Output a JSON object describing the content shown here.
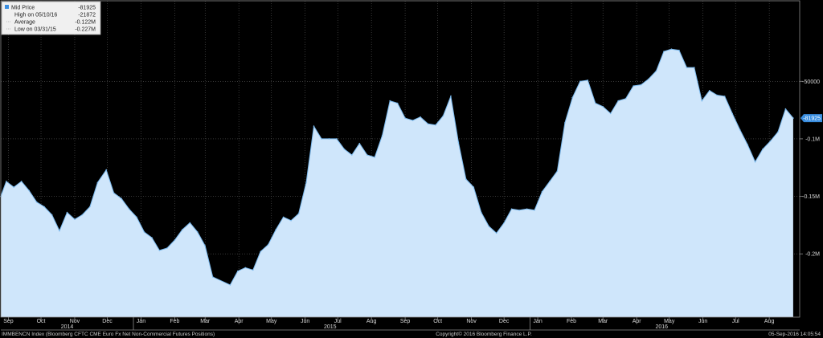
{
  "colors": {
    "background": "#000000",
    "plot_border": "#8a8a8a",
    "grid": "#5a5a5a",
    "area_fill": "#cfe6fb",
    "line": "#7ab8ec",
    "last_price_tag": "#3a8ee0"
  },
  "legend": {
    "rows": [
      {
        "label": "Mid Price",
        "value": "-81925",
        "swatch": "square"
      },
      {
        "label": "High on 05/10/16",
        "value": "-21872",
        "swatch": "none"
      },
      {
        "label": "Average",
        "value": "-0.122M",
        "swatch": "dash"
      },
      {
        "label": "Low on 03/31/15",
        "value": "-0.227M",
        "swatch": "dash"
      }
    ]
  },
  "last_price_label": "-81925",
  "footer": {
    "left": "IMMBENCN Index (Bloomberg CFTC CME Euro Fx Net Non-Commercial Futures Positions)",
    "center": "Copyright© 2016 Bloomberg Finance L.P.",
    "right": "05-Sep-2016 14:05:54"
  },
  "chart_data": {
    "type": "area",
    "title": "",
    "xlabel": "",
    "ylabel": "",
    "x_range": [
      "2014-09-01",
      "2016-09-05"
    ],
    "ylim": [
      -0.255,
      0.02
    ],
    "y_ticks": [
      {
        "value": -0.05,
        "label": "-50000"
      },
      {
        "value": -0.1,
        "label": "-0.1M"
      },
      {
        "value": -0.15,
        "label": "-0.15M"
      },
      {
        "value": -0.2,
        "label": "-0.2M"
      }
    ],
    "x_ticks": [
      {
        "date": "2014-09-08",
        "label": "Sep"
      },
      {
        "date": "2014-10-08",
        "label": "Oct"
      },
      {
        "date": "2014-11-08",
        "label": "Nov"
      },
      {
        "date": "2014-12-08",
        "label": "Dec"
      },
      {
        "date": "2015-01-08",
        "label": "Jan"
      },
      {
        "date": "2015-02-08",
        "label": "Feb"
      },
      {
        "date": "2015-03-08",
        "label": "Mar"
      },
      {
        "date": "2015-04-08",
        "label": "Apr"
      },
      {
        "date": "2015-05-08",
        "label": "May"
      },
      {
        "date": "2015-06-08",
        "label": "Jun"
      },
      {
        "date": "2015-07-08",
        "label": "Jul"
      },
      {
        "date": "2015-08-08",
        "label": "Aug"
      },
      {
        "date": "2015-09-08",
        "label": "Sep"
      },
      {
        "date": "2015-10-08",
        "label": "Oct"
      },
      {
        "date": "2015-11-08",
        "label": "Nov"
      },
      {
        "date": "2015-12-08",
        "label": "Dec"
      },
      {
        "date": "2016-01-08",
        "label": "Jan"
      },
      {
        "date": "2016-02-08",
        "label": "Feb"
      },
      {
        "date": "2016-03-08",
        "label": "Mar"
      },
      {
        "date": "2016-04-08",
        "label": "Apr"
      },
      {
        "date": "2016-05-08",
        "label": "May"
      },
      {
        "date": "2016-06-08",
        "label": "Jun"
      },
      {
        "date": "2016-07-08",
        "label": "Jul"
      },
      {
        "date": "2016-08-08",
        "label": "Aug"
      }
    ],
    "year_labels": [
      {
        "date": "2014-11-01",
        "label": "2014"
      },
      {
        "date": "2015-07-01",
        "label": "2015"
      },
      {
        "date": "2016-05-01",
        "label": "2016"
      }
    ],
    "year_separators": [
      "2015-01-01",
      "2016-01-01"
    ],
    "series": [
      {
        "name": "Mid Price",
        "unit": "M",
        "points": [
          [
            "2014-09-01",
            -0.15
          ],
          [
            "2014-09-06",
            -0.137
          ],
          [
            "2014-09-13",
            -0.142
          ],
          [
            "2014-09-20",
            -0.137
          ],
          [
            "2014-09-27",
            -0.145
          ],
          [
            "2014-10-04",
            -0.155
          ],
          [
            "2014-10-11",
            -0.159
          ],
          [
            "2014-10-18",
            -0.166
          ],
          [
            "2014-10-25",
            -0.18
          ],
          [
            "2014-11-01",
            -0.164
          ],
          [
            "2014-11-08",
            -0.17
          ],
          [
            "2014-11-15",
            -0.166
          ],
          [
            "2014-11-22",
            -0.159
          ],
          [
            "2014-11-29",
            -0.138
          ],
          [
            "2014-12-07",
            -0.127
          ],
          [
            "2014-12-14",
            -0.147
          ],
          [
            "2014-12-21",
            -0.152
          ],
          [
            "2014-12-28",
            -0.161
          ],
          [
            "2015-01-04",
            -0.168
          ],
          [
            "2015-01-11",
            -0.181
          ],
          [
            "2015-01-18",
            -0.186
          ],
          [
            "2015-01-25",
            -0.197
          ],
          [
            "2015-02-01",
            -0.195
          ],
          [
            "2015-02-08",
            -0.188
          ],
          [
            "2015-02-15",
            -0.179
          ],
          [
            "2015-02-22",
            -0.173
          ],
          [
            "2015-03-01",
            -0.181
          ],
          [
            "2015-03-08",
            -0.193
          ],
          [
            "2015-03-15",
            -0.22
          ],
          [
            "2015-03-31",
            -0.227
          ],
          [
            "2015-04-07",
            -0.215
          ],
          [
            "2015-04-14",
            -0.212
          ],
          [
            "2015-04-21",
            -0.214
          ],
          [
            "2015-04-28",
            -0.198
          ],
          [
            "2015-05-05",
            -0.192
          ],
          [
            "2015-05-12",
            -0.179
          ],
          [
            "2015-05-19",
            -0.168
          ],
          [
            "2015-05-26",
            -0.171
          ],
          [
            "2015-06-02",
            -0.165
          ],
          [
            "2015-06-09",
            -0.138
          ],
          [
            "2015-06-16",
            -0.089
          ],
          [
            "2015-06-23",
            -0.1
          ],
          [
            "2015-06-30",
            -0.1
          ],
          [
            "2015-07-07",
            -0.1
          ],
          [
            "2015-07-14",
            -0.109
          ],
          [
            "2015-07-21",
            -0.114
          ],
          [
            "2015-07-28",
            -0.104
          ],
          [
            "2015-08-04",
            -0.114
          ],
          [
            "2015-08-11",
            -0.116
          ],
          [
            "2015-08-18",
            -0.097
          ],
          [
            "2015-08-25",
            -0.067
          ],
          [
            "2015-09-01",
            -0.069
          ],
          [
            "2015-09-08",
            -0.082
          ],
          [
            "2015-09-15",
            -0.084
          ],
          [
            "2015-09-22",
            -0.081
          ],
          [
            "2015-09-29",
            -0.087
          ],
          [
            "2015-10-06",
            -0.088
          ],
          [
            "2015-10-13",
            -0.08
          ],
          [
            "2015-10-20",
            -0.063
          ],
          [
            "2015-10-27",
            -0.103
          ],
          [
            "2015-11-03",
            -0.135
          ],
          [
            "2015-11-10",
            -0.142
          ],
          [
            "2015-11-17",
            -0.164
          ],
          [
            "2015-11-24",
            -0.176
          ],
          [
            "2015-12-01",
            -0.182
          ],
          [
            "2015-12-08",
            -0.173
          ],
          [
            "2015-12-15",
            -0.161
          ],
          [
            "2015-12-22",
            -0.162
          ],
          [
            "2015-12-29",
            -0.161
          ],
          [
            "2016-01-05",
            -0.162
          ],
          [
            "2016-01-12",
            -0.146
          ],
          [
            "2016-01-19",
            -0.137
          ],
          [
            "2016-01-26",
            -0.128
          ],
          [
            "2016-02-02",
            -0.086
          ],
          [
            "2016-02-09",
            -0.064
          ],
          [
            "2016-02-16",
            -0.05
          ],
          [
            "2016-02-23",
            -0.049
          ],
          [
            "2016-03-01",
            -0.069
          ],
          [
            "2016-03-08",
            -0.072
          ],
          [
            "2016-03-15",
            -0.078
          ],
          [
            "2016-03-22",
            -0.067
          ],
          [
            "2016-03-29",
            -0.065
          ],
          [
            "2016-04-05",
            -0.054
          ],
          [
            "2016-04-12",
            -0.053
          ],
          [
            "2016-04-19",
            -0.048
          ],
          [
            "2016-04-26",
            -0.041
          ],
          [
            "2016-05-03",
            -0.024
          ],
          [
            "2016-05-10",
            -0.022
          ],
          [
            "2016-05-17",
            -0.023
          ],
          [
            "2016-05-24",
            -0.038
          ],
          [
            "2016-05-31",
            -0.038
          ],
          [
            "2016-06-07",
            -0.067
          ],
          [
            "2016-06-14",
            -0.058
          ],
          [
            "2016-06-21",
            -0.062
          ],
          [
            "2016-06-28",
            -0.063
          ],
          [
            "2016-07-05",
            -0.078
          ],
          [
            "2016-07-12",
            -0.092
          ],
          [
            "2016-07-19",
            -0.105
          ],
          [
            "2016-07-26",
            -0.12
          ],
          [
            "2016-08-02",
            -0.109
          ],
          [
            "2016-08-09",
            -0.102
          ],
          [
            "2016-08-16",
            -0.094
          ],
          [
            "2016-08-23",
            -0.074
          ],
          [
            "2016-08-30",
            -0.082
          ]
        ]
      }
    ]
  }
}
